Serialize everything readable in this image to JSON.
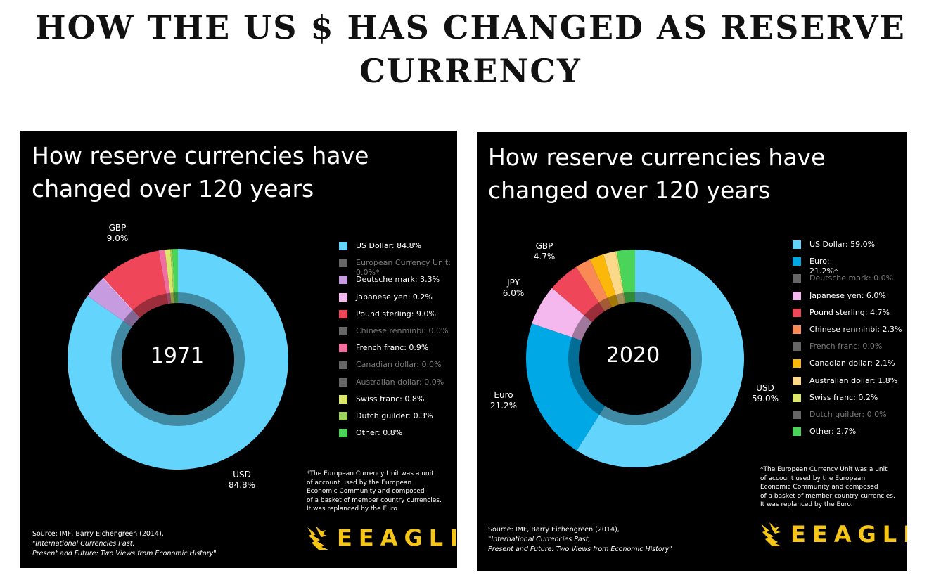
{
  "page_title": {
    "line1": "HOW THE US $ HAS CHANGED AS RESERVE",
    "line2": "CURRENCY"
  },
  "chart_data": [
    {
      "type": "pie",
      "variant": "donut",
      "title_line1": "How reserve currencies have",
      "title_line2": "changed over 120 years",
      "center_label": "1971",
      "categories": [
        "US Dollar",
        "European Currency Unit",
        "Deutsche mark",
        "Japanese yen",
        "Pound sterling",
        "Chinese renminbi",
        "French franc",
        "Canadian dollar",
        "Australian dollar",
        "Swiss franc",
        "Dutch guilder",
        "Other"
      ],
      "values": [
        84.8,
        0.0,
        3.3,
        0.2,
        9.0,
        0.0,
        0.9,
        0.0,
        0.0,
        0.8,
        0.3,
        0.8
      ],
      "colors": [
        "#63d4fb",
        "#666666",
        "#c79be0",
        "#f5b8ee",
        "#f0465a",
        "#666666",
        "#f06ea0",
        "#666666",
        "#666666",
        "#dbe66a",
        "#9bd35a",
        "#4bd45a"
      ],
      "legend": [
        {
          "label": "US Dollar: 84.8%",
          "dim": false
        },
        {
          "label": "European Currency Unit:",
          "label2": "0.0%*",
          "dim": true
        },
        {
          "label": "Deutsche mark: 3.3%",
          "dim": false
        },
        {
          "label": "Japanese yen: 0.2%",
          "dim": false
        },
        {
          "label": "Pound sterling: 9.0%",
          "dim": false
        },
        {
          "label": "Chinese renminbi: 0.0%",
          "dim": true
        },
        {
          "label": "French franc: 0.9%",
          "dim": false
        },
        {
          "label": "Canadian dollar: 0.0%",
          "dim": true
        },
        {
          "label": "Australian dollar: 0.0%",
          "dim": true
        },
        {
          "label": "Swiss franc: 0.8%",
          "dim": false
        },
        {
          "label": "Dutch guilder: 0.3%",
          "dim": false
        },
        {
          "label": "Other: 0.8%",
          "dim": false
        }
      ],
      "callouts": [
        {
          "name": "GBP",
          "value": "9.0%"
        },
        {
          "name": "USD",
          "value": "84.8%"
        }
      ],
      "footnote": [
        "*The European Currency Unit was a unit",
        "of account used by the European",
        "Economic Community and composed",
        "of a basket of member country currencies.",
        "It was replanced by the Euro."
      ],
      "source_prefix": "Source: IMF, Barry Eichengreen (2014), ",
      "source_italic1": "\"International Currencies Past,",
      "source_italic2": "Present and Future: Two Views from Economic History\"",
      "logo_text": "EEAGLI"
    },
    {
      "type": "pie",
      "variant": "donut",
      "title_line1": "How reserve currencies have",
      "title_line2": "changed over 120 years",
      "center_label": "2020",
      "categories": [
        "US Dollar",
        "Euro",
        "Deutsche mark",
        "Japanese yen",
        "Pound sterling",
        "Chinese renminbi",
        "French franc",
        "Canadian dollar",
        "Australian dollar",
        "Swiss franc",
        "Dutch guilder",
        "Other"
      ],
      "values": [
        59.0,
        21.2,
        0.0,
        6.0,
        4.7,
        2.3,
        0.0,
        2.1,
        1.8,
        0.2,
        0.0,
        2.7
      ],
      "colors": [
        "#63d4fb",
        "#00a9e6",
        "#666666",
        "#f5b8ee",
        "#f0465a",
        "#f98a55",
        "#666666",
        "#fbb80a",
        "#fcd98a",
        "#dbe66a",
        "#666666",
        "#4bd45a"
      ],
      "legend": [
        {
          "label": "US Dollar: 59.0%",
          "dim": false
        },
        {
          "label": "Euro:",
          "label2": "21.2%*",
          "dim": false
        },
        {
          "label": "Deutsche mark: 0.0%",
          "dim": true
        },
        {
          "label": "Japanese yen: 6.0%",
          "dim": false
        },
        {
          "label": "Pound sterling: 4.7%",
          "dim": false
        },
        {
          "label": "Chinese renminbi: 2.3%",
          "dim": false
        },
        {
          "label": "French franc: 0.0%",
          "dim": true
        },
        {
          "label": "Canadian dollar: 2.1%",
          "dim": false
        },
        {
          "label": "Australian dollar: 1.8%",
          "dim": false
        },
        {
          "label": "Swiss franc: 0.2%",
          "dim": false
        },
        {
          "label": "Dutch guilder: 0.0%",
          "dim": true
        },
        {
          "label": "Other: 2.7%",
          "dim": false
        }
      ],
      "callouts": [
        {
          "name": "GBP",
          "value": "4.7%"
        },
        {
          "name": "JPY",
          "value": "6.0%"
        },
        {
          "name": "Euro",
          "value": "21.2%"
        },
        {
          "name": "USD",
          "value": "59.0%"
        }
      ],
      "footnote": [
        "*The European Currency Unit was a unit",
        "of account used by the European",
        "Economic Community and composed",
        "of a basket of member country currencies.",
        "It was replanced by the Euro."
      ],
      "source_prefix": "Source: IMF, Barry Eichengreen (2014), ",
      "source_italic1": "\"International Currencies Past,",
      "source_italic2": "Present and Future: Two Views from Economic History\"",
      "logo_text": "EEAGLI"
    }
  ]
}
